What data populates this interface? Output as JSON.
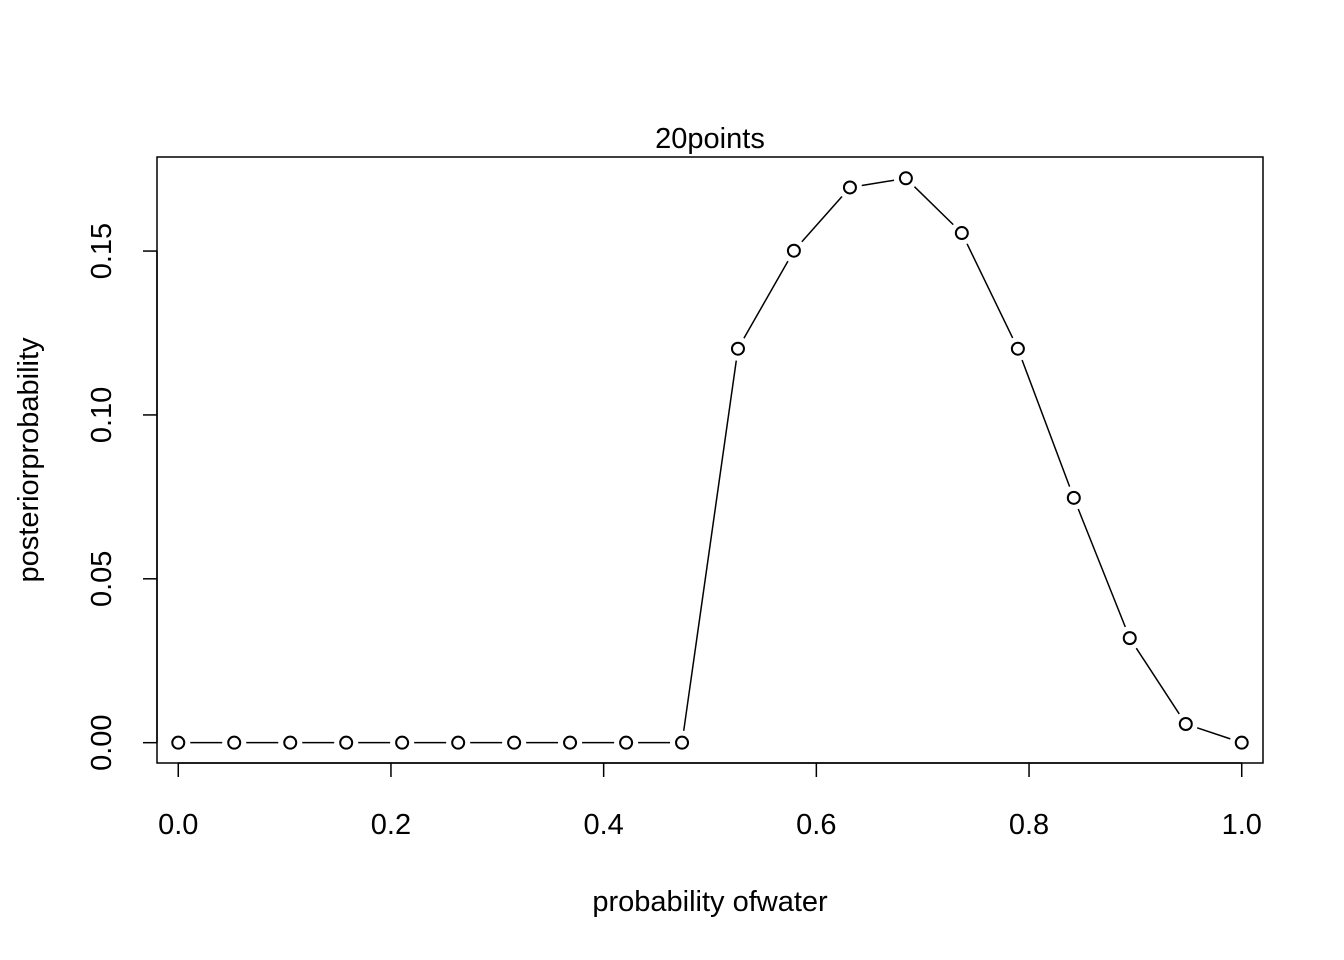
{
  "chart_data": {
    "type": "line",
    "title": "20points",
    "xlabel": "probability ofwater",
    "ylabel": "posteriorprobability",
    "xlim": [
      -0.02,
      1.02
    ],
    "ylim": [
      -0.0062,
      0.1787
    ],
    "grid": false,
    "legend": "none",
    "line_style": "overplotted points and lines",
    "x_ticks": [
      {
        "value": 0.0,
        "label": "0.0"
      },
      {
        "value": 0.2,
        "label": "0.2"
      },
      {
        "value": 0.4,
        "label": "0.4"
      },
      {
        "value": 0.6,
        "label": "0.6"
      },
      {
        "value": 0.8,
        "label": "0.8"
      },
      {
        "value": 1.0,
        "label": "1.0"
      }
    ],
    "y_ticks": [
      {
        "value": 0.0,
        "label": "0.00"
      },
      {
        "value": 0.05,
        "label": "0.05"
      },
      {
        "value": 0.1,
        "label": "0.10"
      },
      {
        "value": 0.15,
        "label": "0.15"
      }
    ],
    "series": [
      {
        "x": [
          0.0,
          0.0526,
          0.1053,
          0.1579,
          0.2105,
          0.2632,
          0.3158,
          0.3684,
          0.4211,
          0.4737,
          0.5263,
          0.5789,
          0.6316,
          0.6842,
          0.7368,
          0.7895,
          0.8421,
          0.8947,
          0.9474,
          1.0
        ],
        "y": [
          0.0,
          0.0,
          0.0,
          0.0,
          0.0,
          0.0,
          0.0,
          0.0,
          0.0,
          0.0,
          0.1202,
          0.1501,
          0.1694,
          0.1722,
          0.1555,
          0.1202,
          0.0747,
          0.0319,
          0.0057,
          0.0
        ]
      }
    ]
  }
}
